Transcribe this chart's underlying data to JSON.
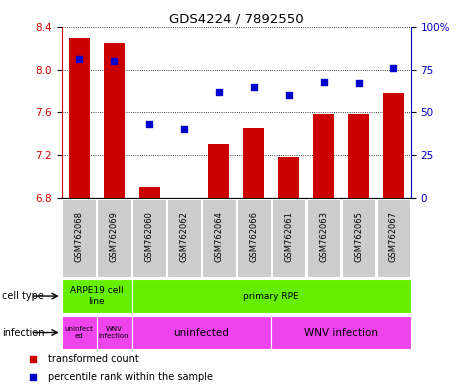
{
  "title": "GDS4224 / 7892550",
  "samples": [
    "GSM762068",
    "GSM762069",
    "GSM762060",
    "GSM762062",
    "GSM762064",
    "GSM762066",
    "GSM762061",
    "GSM762063",
    "GSM762065",
    "GSM762067"
  ],
  "transformed_count": [
    8.3,
    8.25,
    6.9,
    6.8,
    7.3,
    7.45,
    7.18,
    7.58,
    7.58,
    7.78
  ],
  "percentile_rank": [
    81,
    80,
    43,
    40,
    62,
    65,
    60,
    68,
    67,
    76
  ],
  "ylim_left": [
    6.8,
    8.4
  ],
  "ylim_right": [
    0,
    100
  ],
  "yticks_left": [
    6.8,
    7.2,
    7.6,
    8.0,
    8.4
  ],
  "yticks_right": [
    0,
    25,
    50,
    75,
    100
  ],
  "ytick_labels_right": [
    "0",
    "25",
    "50",
    "75",
    "100%"
  ],
  "bar_color": "#cc0000",
  "dot_color": "#0000cc",
  "bar_bottom": 6.8,
  "cell_type_blocks": [
    {
      "label": "ARPE19 cell\nline",
      "start": 0,
      "end": 2,
      "color": "#66ee00"
    },
    {
      "label": "primary RPE",
      "start": 2,
      "end": 10,
      "color": "#66ee00"
    }
  ],
  "infection_blocks": [
    {
      "label": "uninfect\ned",
      "start": 0,
      "end": 1,
      "color": "#ee44ee"
    },
    {
      "label": "WNV\ninfection",
      "start": 1,
      "end": 2,
      "color": "#ee44ee"
    },
    {
      "label": "uninfected",
      "start": 2,
      "end": 6,
      "color": "#ee44ee"
    },
    {
      "label": "WNV infection",
      "start": 6,
      "end": 10,
      "color": "#ee44ee"
    }
  ],
  "tick_bg_color": "#cccccc",
  "cell_type_color": "#66ee00",
  "infection_color": "#ee44ee"
}
